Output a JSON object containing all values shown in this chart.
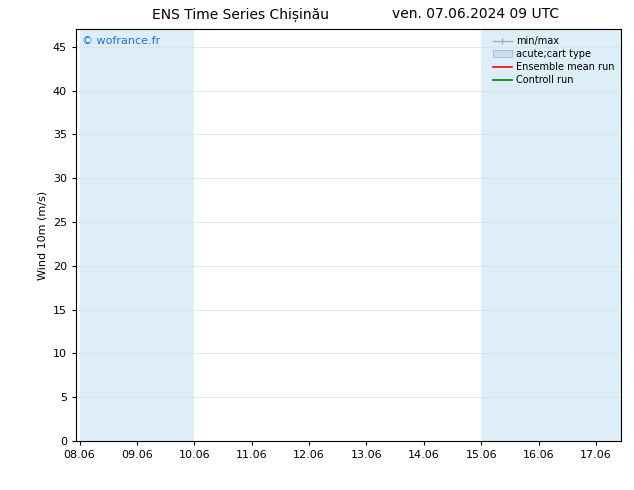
{
  "title_left": "ENS Time Series Chișinău",
  "title_right": "ven. 07.06.2024 09 UTC",
  "ylabel": "Wind 10m (m/s)",
  "watermark": "© wofrance.fr",
  "bg_color": "#ffffff",
  "plot_bg_color": "#ffffff",
  "shaded_x": [
    [
      8.06,
      10.06
    ],
    [
      15.06,
      16.06
    ],
    [
      16.06,
      17.06
    ],
    [
      17.06,
      17.5
    ]
  ],
  "shaded_color": "#ddeef8",
  "x_ticks": [
    8.06,
    9.06,
    10.06,
    11.06,
    12.06,
    13.06,
    14.06,
    15.06,
    16.06,
    17.06
  ],
  "x_tick_labels": [
    "08.06",
    "09.06",
    "10.06",
    "11.06",
    "12.06",
    "13.06",
    "14.06",
    "15.06",
    "16.06",
    "17.06"
  ],
  "xlim": [
    8.0,
    17.5
  ],
  "ylim": [
    0,
    47
  ],
  "y_ticks": [
    0,
    5,
    10,
    15,
    20,
    25,
    30,
    35,
    40,
    45
  ],
  "legend_items": [
    {
      "label": "min/max",
      "color": "#aaaaaa",
      "style": "minmax"
    },
    {
      "label": "acute;cart type",
      "color": "#c8dff0",
      "style": "fill"
    },
    {
      "label": "Ensemble mean run",
      "color": "#ff0000",
      "style": "line"
    },
    {
      "label": "Controll run",
      "color": "#008000",
      "style": "line"
    }
  ],
  "grid_color": "#dddddd",
  "title_fontsize": 10,
  "label_fontsize": 8,
  "tick_fontsize": 8,
  "watermark_color": "#1a73e8",
  "watermark_fontsize": 8
}
